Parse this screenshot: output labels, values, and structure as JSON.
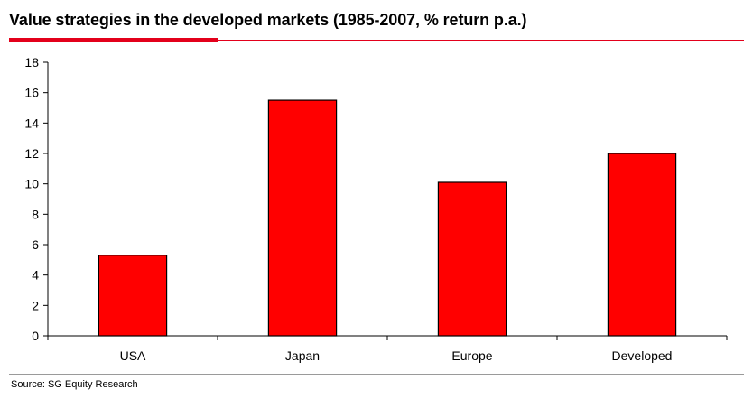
{
  "header": {
    "title": "Value strategies in the developed markets (1985-2007, % return p.a.)"
  },
  "footer": {
    "source": "Source: SG Equity Research"
  },
  "colors": {
    "accent": "#e3001b",
    "bar_fill": "#ff0000",
    "bar_stroke": "#000000"
  },
  "chart_data": {
    "type": "bar",
    "categories": [
      "USA",
      "Japan",
      "Europe",
      "Developed"
    ],
    "values": [
      5.3,
      15.5,
      10.1,
      12.0
    ],
    "title": "Value strategies in the developed markets (1985-2007, % return p.a.)",
    "xlabel": "",
    "ylabel": "",
    "ylim": [
      0,
      18
    ],
    "yticks": [
      0,
      2,
      4,
      6,
      8,
      10,
      12,
      14,
      16,
      18
    ],
    "grid": false,
    "legend": "none"
  }
}
